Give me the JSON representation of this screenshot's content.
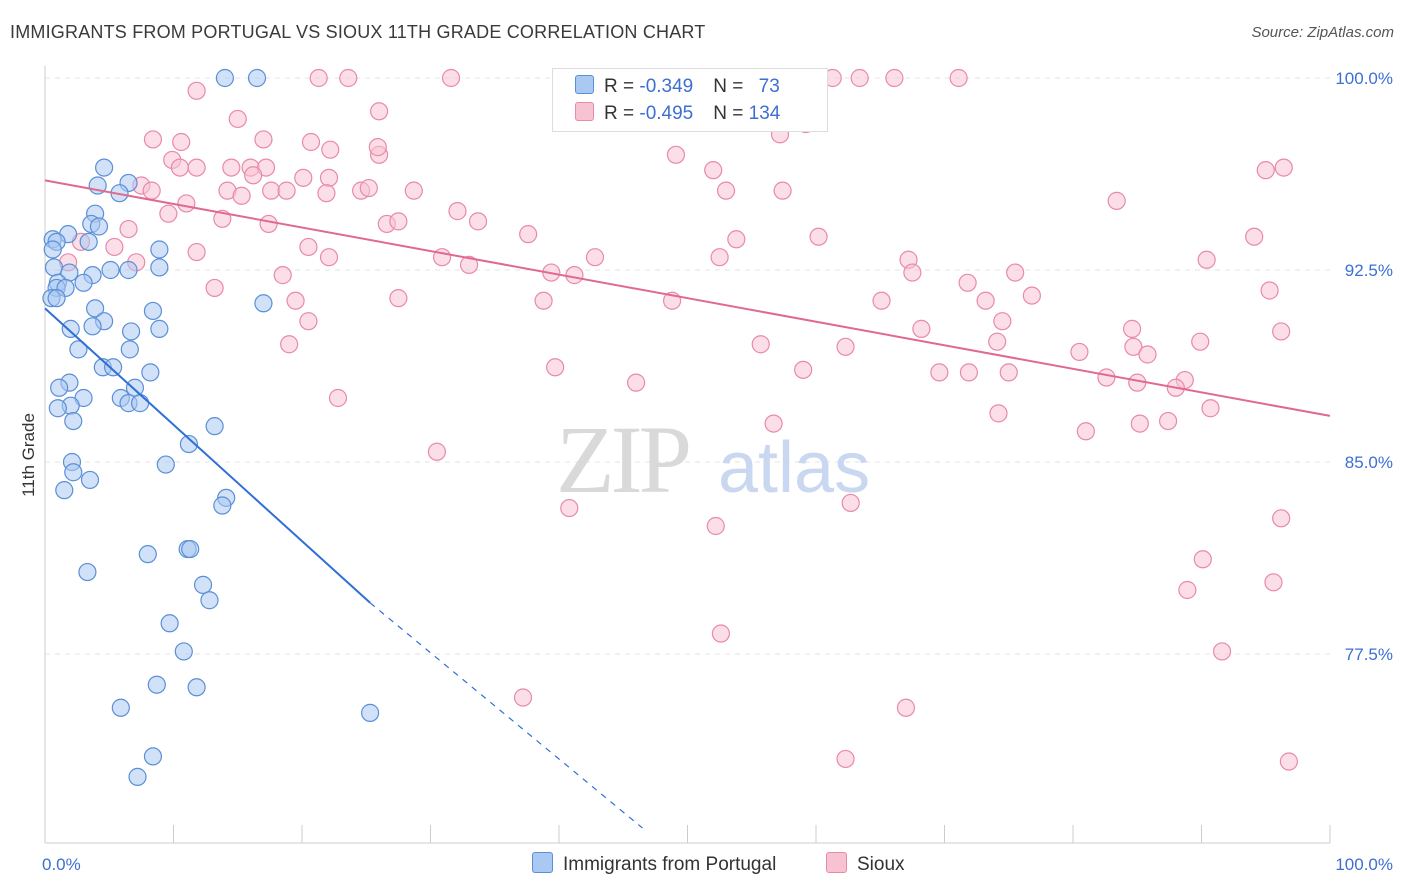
{
  "title": "IMMIGRANTS FROM PORTUGAL VS SIOUX 11TH GRADE CORRELATION CHART",
  "source": "Source: ZipAtlas.com",
  "watermark": {
    "zip": "ZIP",
    "atlas": "atlas"
  },
  "colors": {
    "blue_fill": "#a9c8f2",
    "blue_stroke": "#5b8fd6",
    "blue_line": "#2f6fd6",
    "pink_fill": "#f7c3d3",
    "pink_stroke": "#e88aa8",
    "pink_line": "#e0698f",
    "accent_text": "#3d6fd1"
  },
  "legend": {
    "rows": [
      {
        "r_label": "R = ",
        "r_value": "-0.349",
        "n_label": "N = ",
        "n_value": "73"
      },
      {
        "r_label": "R = ",
        "r_value": "-0.495",
        "n_label": "N = ",
        "n_value": "134"
      }
    ]
  },
  "bottom_legend": [
    "Immigrants from Portugal",
    "Sioux"
  ],
  "chart_data": {
    "type": "scatter",
    "title": "IMMIGRANTS FROM PORTUGAL VS SIOUX 11TH GRADE CORRELATION CHART",
    "ylabel": "11th Grade",
    "xlabel": "",
    "xlim": [
      0,
      100
    ],
    "ylim": [
      70.7,
      100.7
    ],
    "x_tick_labels": [
      "0.0%",
      "100.0%"
    ],
    "y_ticks": [
      77.5,
      85.0,
      92.5,
      100.0
    ],
    "y_tick_labels": [
      "77.5%",
      "85.0%",
      "92.5%",
      "100.0%"
    ],
    "grid": "horizontal dashed",
    "series": [
      {
        "name": "Immigrants from Portugal",
        "r": -0.349,
        "n": 73,
        "trend": {
          "x0": 0,
          "y0": 91.0,
          "x1": 25.3,
          "y1": 79.5,
          "dashed_to_x": 46.5,
          "dashed_to_y": 70.7
        },
        "points": [
          [
            14,
            100
          ],
          [
            16.5,
            100
          ],
          [
            4.6,
            96.5
          ],
          [
            6.5,
            95.9
          ],
          [
            4.1,
            95.8
          ],
          [
            5.8,
            95.5
          ],
          [
            3.9,
            94.7
          ],
          [
            3.6,
            94.3
          ],
          [
            4.2,
            94.2
          ],
          [
            1.8,
            93.9
          ],
          [
            0.6,
            93.7
          ],
          [
            0.9,
            93.6
          ],
          [
            3.4,
            93.6
          ],
          [
            0.6,
            93.3
          ],
          [
            8.9,
            93.3
          ],
          [
            0.7,
            92.6
          ],
          [
            5.1,
            92.5
          ],
          [
            6.5,
            92.5
          ],
          [
            8.9,
            92.6
          ],
          [
            3.7,
            92.3
          ],
          [
            1.9,
            92.4
          ],
          [
            1.0,
            92.0
          ],
          [
            3.0,
            92.0
          ],
          [
            0.9,
            91.8
          ],
          [
            1.6,
            91.8
          ],
          [
            0.5,
            91.4
          ],
          [
            0.9,
            91.4
          ],
          [
            3.9,
            91.0
          ],
          [
            8.4,
            90.9
          ],
          [
            17.0,
            91.2
          ],
          [
            4.6,
            90.5
          ],
          [
            3.7,
            90.3
          ],
          [
            2.0,
            90.2
          ],
          [
            6.7,
            90.1
          ],
          [
            8.9,
            90.2
          ],
          [
            2.6,
            89.4
          ],
          [
            6.6,
            89.4
          ],
          [
            4.5,
            88.7
          ],
          [
            5.3,
            88.7
          ],
          [
            8.2,
            88.5
          ],
          [
            1.9,
            88.1
          ],
          [
            1.1,
            87.9
          ],
          [
            7.0,
            87.9
          ],
          [
            3.0,
            87.5
          ],
          [
            5.9,
            87.5
          ],
          [
            6.5,
            87.3
          ],
          [
            7.4,
            87.3
          ],
          [
            2.0,
            87.2
          ],
          [
            1.0,
            87.1
          ],
          [
            2.2,
            86.6
          ],
          [
            13.2,
            86.4
          ],
          [
            11.2,
            85.7
          ],
          [
            2.1,
            85.0
          ],
          [
            9.4,
            84.9
          ],
          [
            2.2,
            84.6
          ],
          [
            3.5,
            84.3
          ],
          [
            1.5,
            83.9
          ],
          [
            14.1,
            83.6
          ],
          [
            13.8,
            83.3
          ],
          [
            11.1,
            81.6
          ],
          [
            11.3,
            81.6
          ],
          [
            8.0,
            81.4
          ],
          [
            3.3,
            80.7
          ],
          [
            12.3,
            80.2
          ],
          [
            12.8,
            79.6
          ],
          [
            9.7,
            78.7
          ],
          [
            10.8,
            77.6
          ],
          [
            8.7,
            76.3
          ],
          [
            11.8,
            76.2
          ],
          [
            5.9,
            75.4
          ],
          [
            25.3,
            75.2
          ],
          [
            8.4,
            73.5
          ],
          [
            7.2,
            72.7
          ]
        ]
      },
      {
        "name": "Sioux",
        "r": -0.495,
        "n": 134,
        "trend": {
          "x0": 0,
          "y0": 96.0,
          "x1": 100,
          "y1": 86.8
        },
        "points": [
          [
            21.3,
            100
          ],
          [
            23.6,
            100
          ],
          [
            31.6,
            100
          ],
          [
            50.9,
            100
          ],
          [
            51.2,
            100
          ],
          [
            61.3,
            100
          ],
          [
            63.4,
            100
          ],
          [
            66.1,
            100
          ],
          [
            71.1,
            100
          ],
          [
            11.8,
            99.5
          ],
          [
            15.0,
            98.4
          ],
          [
            26.0,
            98.7
          ],
          [
            54.9,
            98.7
          ],
          [
            59.2,
            98.2
          ],
          [
            57.2,
            97.8
          ],
          [
            8.4,
            97.6
          ],
          [
            17.0,
            97.6
          ],
          [
            10.6,
            97.5
          ],
          [
            20.7,
            97.5
          ],
          [
            26.0,
            97.0
          ],
          [
            22.2,
            97.2
          ],
          [
            25.9,
            97.3
          ],
          [
            9.9,
            96.8
          ],
          [
            10.5,
            96.5
          ],
          [
            11.8,
            96.5
          ],
          [
            16.0,
            96.5
          ],
          [
            17.2,
            96.5
          ],
          [
            14.5,
            96.5
          ],
          [
            16.2,
            96.2
          ],
          [
            20.1,
            96.1
          ],
          [
            22.1,
            96.1
          ],
          [
            49.1,
            97.0
          ],
          [
            52.0,
            96.4
          ],
          [
            95.0,
            96.4
          ],
          [
            7.5,
            95.8
          ],
          [
            8.3,
            95.6
          ],
          [
            14.2,
            95.6
          ],
          [
            17.6,
            95.6
          ],
          [
            18.8,
            95.6
          ],
          [
            24.6,
            95.6
          ],
          [
            28.7,
            95.6
          ],
          [
            53.0,
            95.6
          ],
          [
            57.4,
            95.6
          ],
          [
            15.3,
            95.4
          ],
          [
            21.9,
            95.5
          ],
          [
            25.2,
            95.7
          ],
          [
            83.4,
            95.2
          ],
          [
            11.0,
            95.1
          ],
          [
            13.8,
            94.5
          ],
          [
            17.4,
            94.3
          ],
          [
            26.6,
            94.3
          ],
          [
            27.5,
            94.4
          ],
          [
            33.7,
            94.4
          ],
          [
            6.5,
            94.1
          ],
          [
            37.6,
            93.9
          ],
          [
            60.2,
            93.8
          ],
          [
            53.8,
            93.7
          ],
          [
            94.1,
            93.8
          ],
          [
            2.8,
            93.6
          ],
          [
            5.4,
            93.4
          ],
          [
            20.5,
            93.4
          ],
          [
            11.8,
            93.2
          ],
          [
            22.1,
            93.0
          ],
          [
            30.9,
            93.0
          ],
          [
            42.8,
            93.0
          ],
          [
            52.5,
            93.0
          ],
          [
            67.2,
            92.9
          ],
          [
            90.4,
            92.9
          ],
          [
            33.0,
            92.7
          ],
          [
            39.4,
            92.4
          ],
          [
            18.5,
            92.3
          ],
          [
            75.5,
            92.4
          ],
          [
            1.8,
            92.8
          ],
          [
            7.1,
            92.8
          ],
          [
            13.2,
            91.8
          ],
          [
            27.5,
            91.4
          ],
          [
            38.8,
            91.3
          ],
          [
            48.8,
            91.3
          ],
          [
            65.1,
            91.3
          ],
          [
            73.2,
            91.3
          ],
          [
            76.8,
            91.5
          ],
          [
            95.3,
            91.7
          ],
          [
            19.5,
            91.3
          ],
          [
            20.5,
            90.5
          ],
          [
            74.5,
            90.5
          ],
          [
            68.2,
            90.2
          ],
          [
            84.6,
            90.2
          ],
          [
            96.2,
            90.1
          ],
          [
            55.7,
            89.6
          ],
          [
            62.3,
            89.5
          ],
          [
            74.1,
            89.7
          ],
          [
            19.0,
            89.6
          ],
          [
            84.7,
            89.5
          ],
          [
            89.9,
            89.7
          ],
          [
            80.5,
            89.3
          ],
          [
            85.8,
            89.2
          ],
          [
            39.7,
            88.7
          ],
          [
            69.6,
            88.5
          ],
          [
            71.9,
            88.5
          ],
          [
            82.6,
            88.3
          ],
          [
            85.0,
            88.1
          ],
          [
            88.7,
            88.2
          ],
          [
            46.0,
            88.1
          ],
          [
            75.0,
            88.5
          ],
          [
            88.0,
            87.9
          ],
          [
            90.7,
            87.1
          ],
          [
            22.8,
            87.5
          ],
          [
            74.2,
            86.9
          ],
          [
            56.7,
            86.5
          ],
          [
            87.4,
            86.6
          ],
          [
            81.0,
            86.2
          ],
          [
            85.2,
            86.5
          ],
          [
            30.5,
            85.4
          ],
          [
            62.7,
            83.4
          ],
          [
            40.8,
            83.2
          ],
          [
            52.2,
            82.5
          ],
          [
            96.2,
            82.8
          ],
          [
            90.1,
            81.2
          ],
          [
            95.6,
            80.3
          ],
          [
            88.9,
            80.0
          ],
          [
            52.6,
            78.3
          ],
          [
            91.6,
            77.6
          ],
          [
            37.2,
            75.8
          ],
          [
            67.0,
            75.4
          ],
          [
            62.3,
            73.4
          ],
          [
            96.8,
            73.3
          ],
          [
            96.4,
            96.5
          ],
          [
            41.2,
            92.3
          ],
          [
            71.8,
            92.0
          ],
          [
            67.5,
            92.4
          ],
          [
            32.1,
            94.8
          ],
          [
            9.6,
            94.7
          ],
          [
            59.0,
            88.6
          ]
        ]
      }
    ]
  }
}
